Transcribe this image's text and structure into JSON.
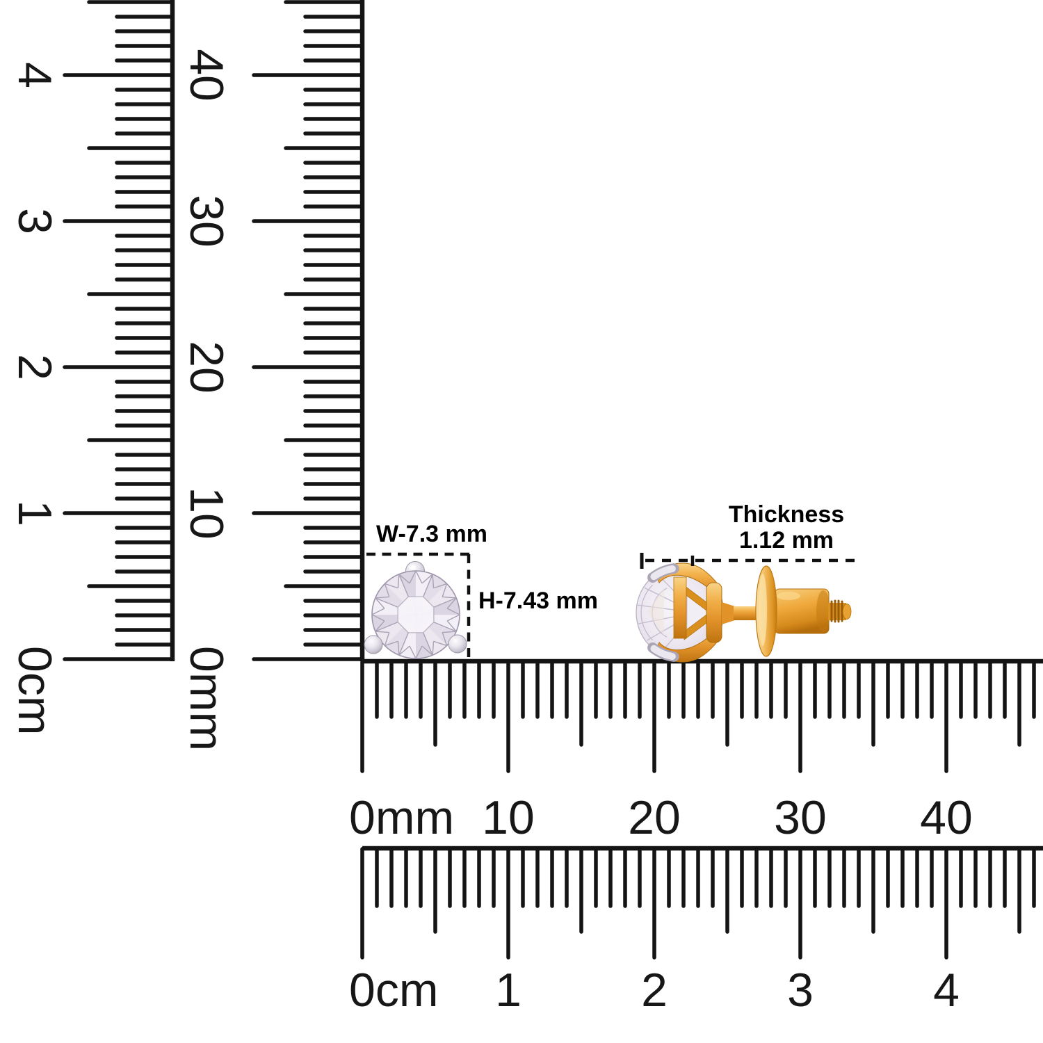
{
  "annotations": {
    "width": "W-7.3 mm",
    "height": "H-7.43 mm",
    "thickness_title": "Thickness",
    "thickness_value": "1.12 mm"
  },
  "measurements": {
    "width_mm": 7.3,
    "height_mm": 7.43,
    "thickness_mm": 1.12
  },
  "rulers": {
    "left_cm": {
      "unit": "cm",
      "orientation": "vertical",
      "labels": [
        "0cm",
        "1",
        "2",
        "3",
        "4"
      ]
    },
    "left_mm": {
      "unit": "mm",
      "orientation": "vertical",
      "labels": [
        "0mm",
        "10",
        "20",
        "30",
        "40"
      ]
    },
    "bottom_mm": {
      "unit": "mm",
      "orientation": "horizontal",
      "labels": [
        "0mm",
        "10",
        "20",
        "30",
        "40"
      ]
    },
    "bottom_cm": {
      "unit": "cm",
      "orientation": "horizontal",
      "labels": [
        "0cm",
        "1",
        "2",
        "3",
        "4"
      ]
    }
  },
  "colors": {
    "ink": "#141414",
    "gold": "#EFA93C",
    "gold_light": "#F9D488",
    "gold_dark": "#BF7410",
    "diamond": "#EDE9F0",
    "silver": "#E2DEE8",
    "background": "#FFFFFF"
  }
}
